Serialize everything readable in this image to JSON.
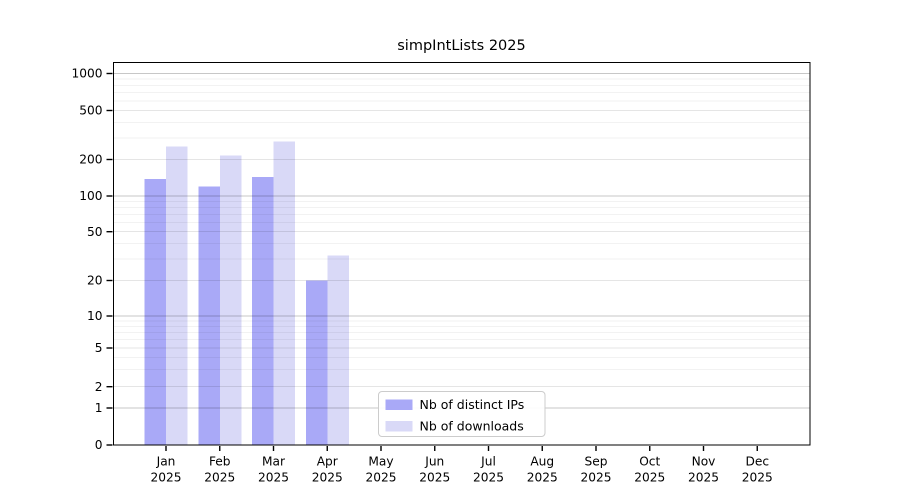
{
  "title": "simpIntLists 2025",
  "chart_data": {
    "type": "bar",
    "title": "simpIntLists 2025",
    "categories": [
      "Jan",
      "Feb",
      "Mar",
      "Apr",
      "May",
      "Jun",
      "Jul",
      "Aug",
      "Sep",
      "Oct",
      "Nov",
      "Dec"
    ],
    "year": "2025",
    "series": [
      {
        "name": "Nb of distinct IPs",
        "color": "#a9a9f7",
        "values": [
          138,
          120,
          143,
          20,
          0,
          0,
          0,
          0,
          0,
          0,
          0,
          0
        ]
      },
      {
        "name": "Nb of downloads",
        "color": "#d9d9f7",
        "values": [
          255,
          215,
          280,
          32,
          0,
          0,
          0,
          0,
          0,
          0,
          0,
          0
        ]
      }
    ],
    "xlabel": "",
    "ylabel": "",
    "yscale": "symlog",
    "y_ticks": [
      0,
      1,
      2,
      5,
      10,
      20,
      50,
      100,
      200,
      500,
      1000
    ],
    "ylim": [
      0,
      1200
    ],
    "grid": true,
    "legend_position": "lower-center inside plot",
    "colors": {
      "frame": "#000000",
      "grid_decade": "rgba(0,0,0,0.22)",
      "grid_major": "rgba(0,0,0,0.10)",
      "grid_minor": "rgba(0,0,0,0.05)",
      "legend_border": "#cccccc",
      "background": "#ffffff"
    }
  }
}
